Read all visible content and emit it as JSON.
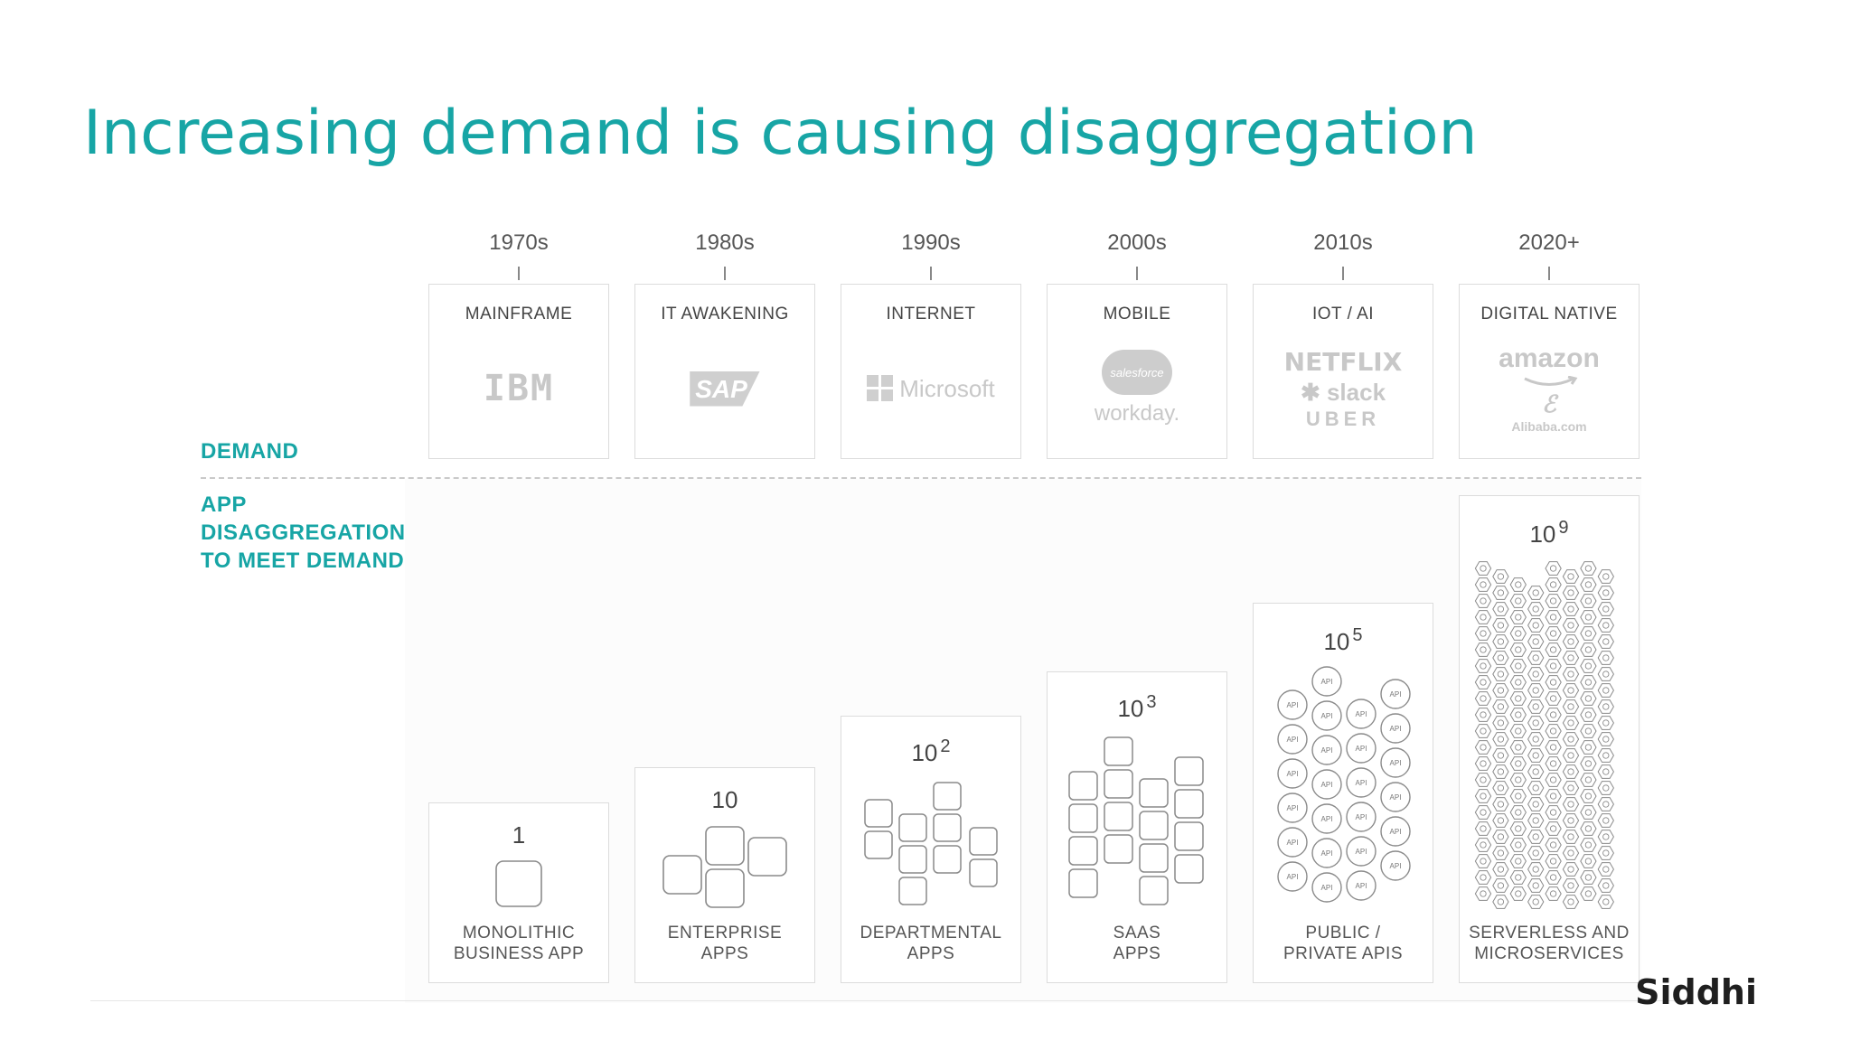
{
  "title": "Increasing demand is causing disaggregation",
  "labels": {
    "demand": "DEMAND",
    "app_lines": [
      "APP",
      "DISAGGREGATION",
      "TO MEET DEMAND"
    ]
  },
  "eras": [
    {
      "year": "1970s",
      "name": "MAINFRAME",
      "logos": [
        "IBM"
      ],
      "app_count": "1",
      "exp": "",
      "app_name": [
        "MONOLITHIC",
        "BUSINESS APP"
      ]
    },
    {
      "year": "1980s",
      "name": "IT AWAKENING",
      "logos": [
        "SAP"
      ],
      "app_count": "10",
      "exp": "",
      "app_name": [
        "ENTERPRISE",
        "APPS"
      ]
    },
    {
      "year": "1990s",
      "name": "INTERNET",
      "logos": [
        "Microsoft"
      ],
      "app_count": "10",
      "exp": "2",
      "app_name": [
        "DEPARTMENTAL",
        "APPS"
      ]
    },
    {
      "year": "2000s",
      "name": "MOBILE",
      "logos": [
        "salesforce",
        "workday."
      ],
      "app_count": "10",
      "exp": "3",
      "app_name": [
        "SAAS",
        "APPS"
      ]
    },
    {
      "year": "2010s",
      "name": "IOT / AI",
      "logos": [
        "NETFLIX",
        "slack",
        "UBER"
      ],
      "app_count": "10",
      "exp": "5",
      "app_name": [
        "PUBLIC /",
        "PRIVATE APIS"
      ]
    },
    {
      "year": "2020+",
      "name": "DIGITAL NATIVE",
      "logos": [
        "amazon",
        "Alibaba.com"
      ],
      "app_count": "10",
      "exp": "9",
      "app_name": [
        "SERVERLESS AND",
        "MICROSERVICES"
      ]
    }
  ],
  "api_label": "API",
  "brand": "Siddhi",
  "colors": {
    "accent": "#17a5a5",
    "logo_gray": "#c8c8c8",
    "box_stroke": "#8a8a8a"
  }
}
